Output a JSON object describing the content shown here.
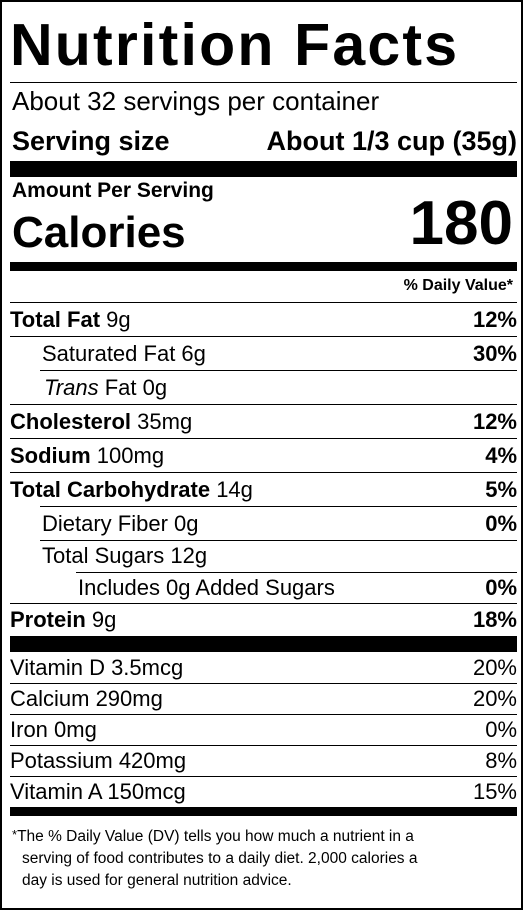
{
  "title": "Nutrition Facts",
  "servings_per_container": "About 32 servings per container",
  "serving_size": {
    "label": "Serving size",
    "value": "About 1/3 cup (35g)"
  },
  "amount_per_serving": "Amount Per Serving",
  "calories": {
    "label": "Calories",
    "value": "180"
  },
  "daily_value_header": "% Daily Value*",
  "nutrients": [
    {
      "name": "Total Fat",
      "amount": "9g",
      "dv": "12%"
    },
    {
      "name": "Saturated Fat",
      "amount": "6g",
      "dv": "30%"
    },
    {
      "name_italic": "Trans",
      "name": "Fat",
      "amount": "0g"
    },
    {
      "name": "Cholesterol",
      "amount": "35mg",
      "dv": "12%"
    },
    {
      "name": "Sodium",
      "amount": "100mg",
      "dv": "4%"
    },
    {
      "name": "Total Carbohydrate",
      "amount": "14g",
      "dv": "5%"
    },
    {
      "name": "Dietary Fiber",
      "amount": "0g",
      "dv": "0%"
    },
    {
      "name": "Total Sugars",
      "amount": "12g"
    },
    {
      "text": "Includes 0g Added Sugars",
      "dv": "0%"
    },
    {
      "name": "Protein",
      "amount": "9g",
      "dv": "18%"
    }
  ],
  "vitamins": [
    {
      "text": "Vitamin D 3.5mcg",
      "dv": "20%"
    },
    {
      "text": "Calcium 290mg",
      "dv": "20%"
    },
    {
      "text": "Iron 0mg",
      "dv": "0%"
    },
    {
      "text": "Potassium 420mg",
      "dv": "8%"
    },
    {
      "text": "Vitamin A 150mcg",
      "dv": "15%"
    }
  ],
  "footnote": {
    "star": "*",
    "line1": "The % Daily Value (DV) tells you how much a nutrient in a",
    "line2": "serving of food contributes to a daily diet. 2,000 calories a",
    "line3": "day is used for general nutrition advice."
  }
}
